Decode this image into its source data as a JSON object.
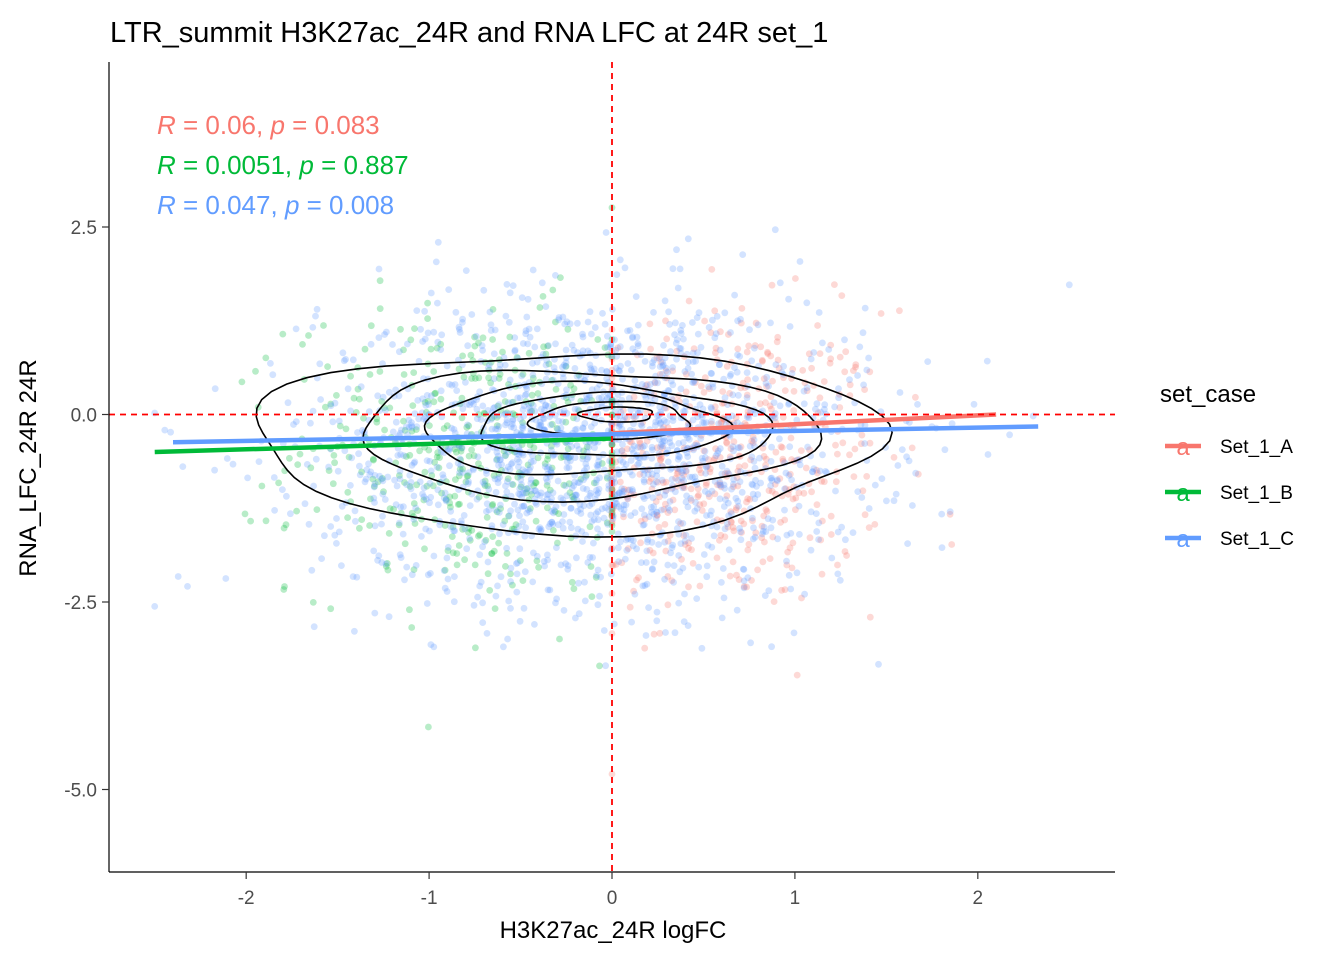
{
  "chart_data": {
    "type": "scatter",
    "title": "LTR_summit H3K27ac_24R and RNA LFC at 24R set_1",
    "xlabel": "H3K27ac_24R logFC",
    "ylabel": "RNA_LFC_24R 24R",
    "xlim": [
      -2.75,
      2.75
    ],
    "ylim": [
      -6.1,
      4.7
    ],
    "x_ticks": [
      -2,
      -1,
      0,
      1,
      2
    ],
    "x_tick_labels": [
      "-2",
      "-1",
      "0",
      "1",
      "2"
    ],
    "y_ticks": [
      2.5,
      0.0,
      -2.5,
      -5.0
    ],
    "y_tick_labels": [
      "2.5",
      "0.0",
      "-2.5",
      "-5.0"
    ],
    "grid": false,
    "reference_lines": {
      "vertical_x": 0,
      "horizontal_y": 0,
      "color": "#ff0000",
      "style": "dashed"
    },
    "legend": {
      "title": "set_case",
      "position": "right",
      "key_glyph": "a",
      "entries": [
        {
          "label": "Set_1_A",
          "color": "#F8766D"
        },
        {
          "label": "Set_1_B",
          "color": "#00BA38"
        },
        {
          "label": "Set_1_C",
          "color": "#619CFF"
        }
      ]
    },
    "series": [
      {
        "name": "Set_1_A",
        "color": "#F8766D",
        "x_range": [
          0,
          2.2
        ],
        "x_mean": 0.6,
        "x_sd": 0.45,
        "y_mean": -0.6,
        "y_sd": 1.0,
        "n": 500,
        "fit_line": {
          "x": [
            0.0,
            2.1
          ],
          "y": [
            -0.25,
            0.0
          ]
        },
        "stat_label": {
          "R": "0.06",
          "p": "0.083"
        }
      },
      {
        "name": "Set_1_B",
        "color": "#00BA38",
        "x_range": [
          -2.6,
          0
        ],
        "x_mean": -0.75,
        "x_sd": 0.5,
        "y_mean": -0.5,
        "y_sd": 0.95,
        "n": 450,
        "fit_line": {
          "x": [
            -2.5,
            0.0
          ],
          "y": [
            -0.5,
            -0.32
          ]
        },
        "stat_label": {
          "R": "0.0051",
          "p": "0.887"
        }
      },
      {
        "name": "Set_1_C",
        "color": "#619CFF",
        "x_range": [
          -2.5,
          2.5
        ],
        "x_mean": -0.1,
        "x_sd": 0.75,
        "y_mean": -0.45,
        "y_sd": 1.0,
        "n": 1700,
        "fit_line": {
          "x": [
            -2.4,
            2.33
          ],
          "y": [
            -0.37,
            -0.16
          ]
        },
        "stat_label": {
          "R": "0.047",
          "p": "0.008"
        }
      }
    ],
    "density_contours": {
      "color": "#000000",
      "levels": [
        {
          "cx": -0.25,
          "cy": -0.35,
          "rx": 1.7,
          "ry": 1.2
        },
        {
          "cx": -0.15,
          "cy": -0.25,
          "rx": 1.25,
          "ry": 0.85
        },
        {
          "cx": -0.1,
          "cy": -0.2,
          "rx": 0.95,
          "ry": 0.6
        },
        {
          "cx": -0.05,
          "cy": -0.15,
          "rx": 0.68,
          "ry": 0.42
        },
        {
          "cx": 0.0,
          "cy": -0.08,
          "rx": 0.43,
          "ry": 0.25
        },
        {
          "cx": 0.03,
          "cy": 0.0,
          "rx": 0.2,
          "ry": 0.1
        }
      ]
    }
  }
}
